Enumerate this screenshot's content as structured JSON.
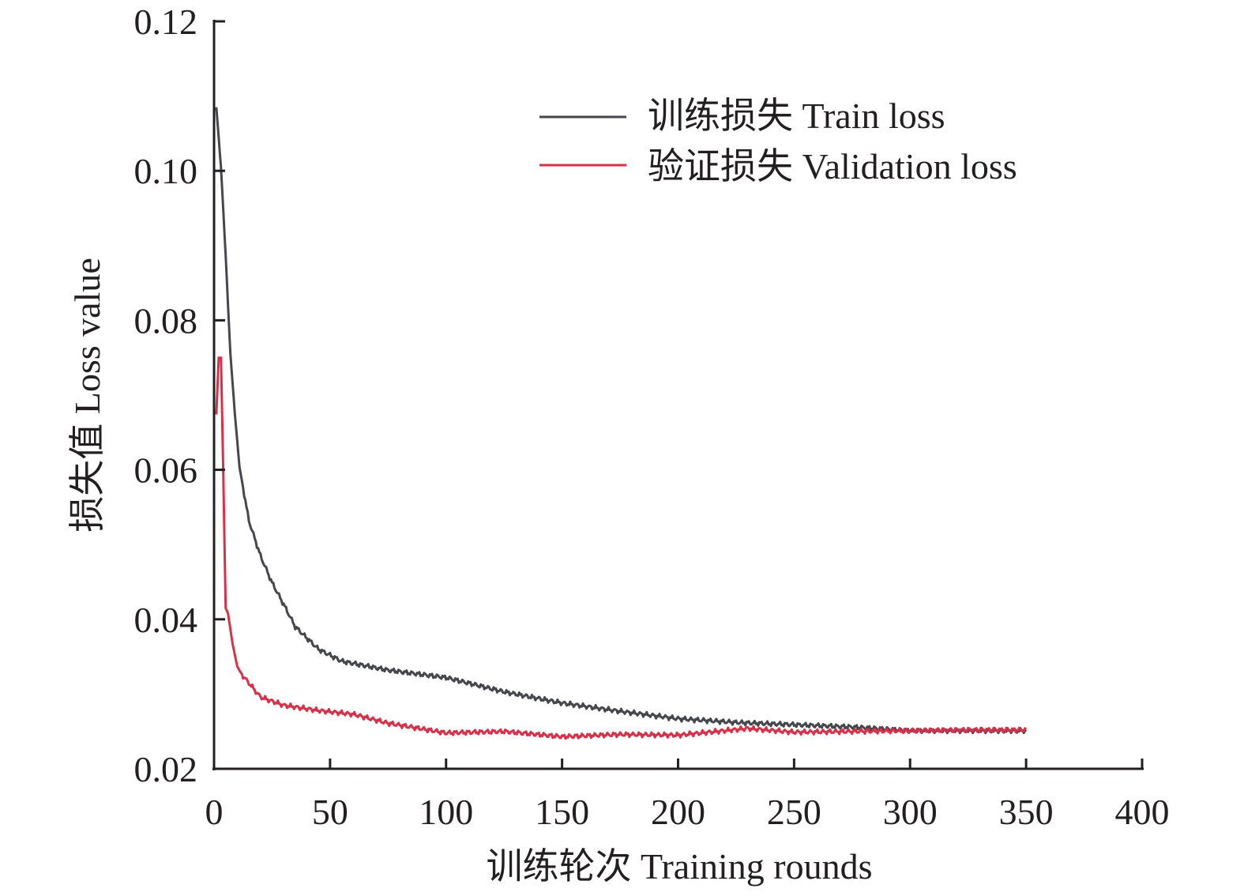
{
  "chart_data": {
    "type": "line",
    "title": "",
    "xlabel": "训练轮次 Training rounds",
    "ylabel": "损失值 Loss value",
    "xlim": [
      0,
      400
    ],
    "ylim": [
      0.02,
      0.12
    ],
    "xticks": [
      "0",
      "50",
      "100",
      "150",
      "200",
      "250",
      "300",
      "350",
      "400"
    ],
    "xtick_values": [
      0,
      50,
      100,
      150,
      200,
      250,
      300,
      350,
      400
    ],
    "yticks": [
      "0.02",
      "0.04",
      "0.06",
      "0.08",
      "0.10",
      "0.12"
    ],
    "ytick_values": [
      0.02,
      0.04,
      0.06,
      0.08,
      0.1,
      0.12
    ],
    "grid": false,
    "legend_position": "top-right",
    "series": [
      {
        "name": "训练损失 Train loss",
        "color": "#45474d",
        "x": [
          1,
          3,
          5,
          7,
          9,
          11,
          15,
          20,
          25,
          30,
          35,
          45,
          55,
          75,
          100,
          125,
          150,
          175,
          200,
          225,
          250,
          275,
          300,
          325,
          350
        ],
        "y": [
          0.1085,
          0.1004,
          0.0887,
          0.0757,
          0.0674,
          0.0603,
          0.0532,
          0.0485,
          0.0449,
          0.042,
          0.039,
          0.036,
          0.0344,
          0.0332,
          0.0322,
          0.0303,
          0.0288,
          0.0277,
          0.0267,
          0.0262,
          0.0259,
          0.0256,
          0.0251,
          0.0251,
          0.0251
        ]
      },
      {
        "name": "验证损失 Validation loss",
        "color": "#d9304a",
        "x": [
          1,
          2,
          3,
          4,
          5,
          6,
          8,
          10,
          12,
          20,
          30,
          45,
          60,
          75,
          100,
          125,
          150,
          175,
          200,
          230,
          250,
          275,
          300,
          325,
          350
        ],
        "y": [
          0.0674,
          0.075,
          0.075,
          0.059,
          0.0415,
          0.0408,
          0.0367,
          0.0337,
          0.0326,
          0.0296,
          0.0285,
          0.0278,
          0.0273,
          0.0261,
          0.0248,
          0.025,
          0.0243,
          0.0246,
          0.0245,
          0.0254,
          0.0249,
          0.025,
          0.0251,
          0.0252,
          0.0252
        ]
      }
    ]
  }
}
